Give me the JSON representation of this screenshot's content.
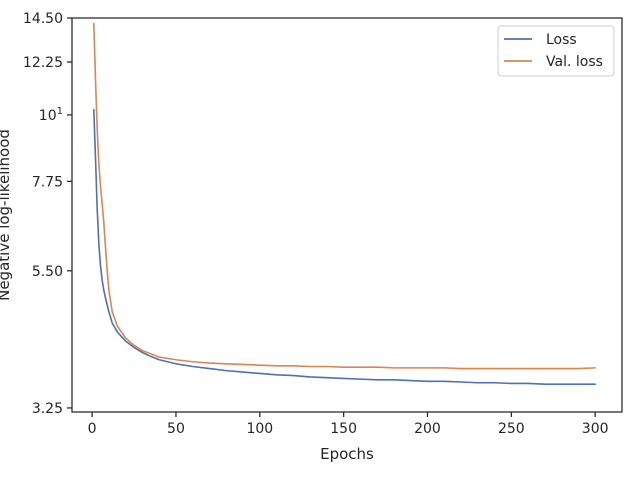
{
  "chart_data": {
    "type": "line",
    "title": "",
    "xlabel": "Epochs",
    "ylabel": "Negative log-likelihood",
    "xlim": [
      -12,
      316
    ],
    "ylim": [
      3.2,
      14.5
    ],
    "y_scale": "log",
    "grid": false,
    "legend_position": "top-right",
    "x_ticks": [
      0,
      50,
      100,
      150,
      200,
      250,
      300
    ],
    "x_tick_labels": [
      "0",
      "50",
      "100",
      "150",
      "200",
      "250",
      "300"
    ],
    "y_ticks": [
      3.25,
      5.5,
      7.75,
      10,
      12.25,
      14.5
    ],
    "y_tick_labels": [
      {
        "base": "3.25",
        "sup": ""
      },
      {
        "base": "5.50",
        "sup": ""
      },
      {
        "base": "7.75",
        "sup": ""
      },
      {
        "base": "10",
        "sup": "1"
      },
      {
        "base": "12.25",
        "sup": ""
      },
      {
        "base": "14.50",
        "sup": ""
      }
    ],
    "series": [
      {
        "name": "Loss",
        "color": "#4c72b0",
        "x": [
          1,
          2,
          3,
          4,
          5,
          6,
          7,
          8,
          10,
          12,
          15,
          20,
          25,
          30,
          35,
          40,
          50,
          60,
          70,
          80,
          90,
          100,
          110,
          120,
          130,
          140,
          150,
          160,
          170,
          180,
          190,
          200,
          210,
          220,
          230,
          240,
          250,
          260,
          270,
          280,
          290,
          300
        ],
        "values": [
          10.2,
          8.5,
          7.0,
          6.1,
          5.6,
          5.3,
          5.1,
          4.95,
          4.7,
          4.5,
          4.35,
          4.2,
          4.1,
          4.02,
          3.96,
          3.91,
          3.85,
          3.81,
          3.78,
          3.75,
          3.73,
          3.71,
          3.69,
          3.68,
          3.66,
          3.65,
          3.64,
          3.63,
          3.62,
          3.62,
          3.61,
          3.6,
          3.6,
          3.59,
          3.58,
          3.58,
          3.57,
          3.57,
          3.56,
          3.56,
          3.56,
          3.56
        ]
      },
      {
        "name": "Val. loss",
        "color": "#dd8452",
        "x": [
          1,
          2,
          3,
          4,
          5,
          6,
          7,
          8,
          9,
          10,
          12,
          15,
          20,
          25,
          30,
          35,
          40,
          50,
          60,
          70,
          80,
          90,
          100,
          110,
          120,
          130,
          140,
          150,
          160,
          170,
          180,
          190,
          200,
          210,
          220,
          230,
          240,
          250,
          260,
          270,
          280,
          290,
          300
        ],
        "values": [
          14.2,
          11.5,
          9.5,
          8.3,
          7.6,
          7.1,
          6.6,
          6.0,
          5.5,
          5.1,
          4.7,
          4.45,
          4.25,
          4.13,
          4.05,
          4.0,
          3.95,
          3.91,
          3.88,
          3.86,
          3.85,
          3.84,
          3.83,
          3.82,
          3.82,
          3.81,
          3.81,
          3.8,
          3.8,
          3.8,
          3.79,
          3.79,
          3.79,
          3.79,
          3.78,
          3.78,
          3.78,
          3.78,
          3.78,
          3.78,
          3.78,
          3.78,
          3.79
        ]
      }
    ]
  }
}
